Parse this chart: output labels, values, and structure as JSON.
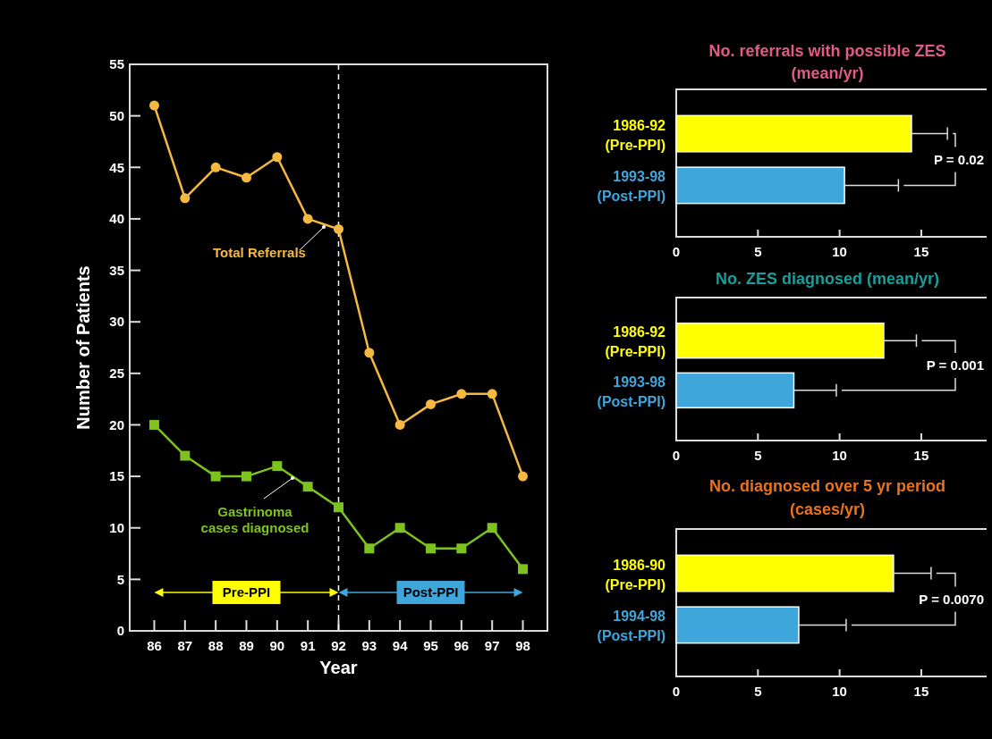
{
  "chart_data": [
    {
      "type": "line",
      "xlabel": "Year",
      "ylabel": "Number of Patients",
      "x": [
        86,
        87,
        88,
        89,
        90,
        91,
        92,
        93,
        94,
        95,
        96,
        97,
        98
      ],
      "xlim": [
        85.2,
        98.8
      ],
      "xticks": [
        86,
        87,
        88,
        89,
        90,
        91,
        92,
        93,
        94,
        95,
        96,
        97,
        98
      ],
      "ylim": [
        0,
        55
      ],
      "yticks": [
        0,
        5,
        10,
        15,
        20,
        25,
        30,
        35,
        40,
        45,
        50,
        55
      ],
      "grid": false,
      "series": [
        {
          "name": "Total Referrals",
          "color": "#f5b942",
          "marker": "circle",
          "values": [
            51,
            42,
            45,
            44,
            46,
            40,
            39,
            27,
            20,
            22,
            23,
            23,
            15
          ]
        },
        {
          "name": "Gastrinoma\ncases diagnosed",
          "color": "#7dc21e",
          "marker": "square",
          "values": [
            20,
            17,
            15,
            15,
            16,
            14,
            12,
            8,
            10,
            8,
            8,
            10,
            6
          ]
        }
      ],
      "ref_lines": [
        {
          "axis": "x",
          "value": 92,
          "color": "#ffffff",
          "line_style": "dashed"
        }
      ],
      "annotations": [
        "Pre-PPI",
        "Post-PPI"
      ]
    },
    {
      "type": "bar",
      "orientation": "horizontal",
      "title": "No. referrals with possible ZES\n(mean/yr)",
      "categories": [
        "1986-92\n(Pre-PPI)",
        "1993-98\n(Post-PPI)"
      ],
      "values": [
        14.4,
        10.3
      ],
      "colors": [
        "#ffff00",
        "#3fa6dc"
      ],
      "errors": [
        [
          14.4,
          16.6
        ],
        [
          10.3,
          13.6
        ]
      ],
      "xlim": [
        0,
        19
      ],
      "xticks": [
        0,
        5,
        10,
        15
      ],
      "annotations": [
        "P = 0.02"
      ]
    },
    {
      "type": "bar",
      "orientation": "horizontal",
      "title": "No. ZES diagnosed (mean/yr)",
      "categories": [
        "1986-92\n(Pre-PPI)",
        "1993-98\n(Post-PPI)"
      ],
      "values": [
        12.7,
        7.2
      ],
      "colors": [
        "#ffff00",
        "#3fa6dc"
      ],
      "errors": [
        [
          12.7,
          14.7
        ],
        [
          7.2,
          9.8
        ]
      ],
      "xlim": [
        0,
        19
      ],
      "xticks": [
        0,
        5,
        10,
        15
      ],
      "annotations": [
        "P = 0.001"
      ]
    },
    {
      "type": "bar",
      "orientation": "horizontal",
      "title": "No. diagnosed over 5 yr period\n(cases/yr)",
      "categories": [
        "1986-90\n(Pre-PPI)",
        "1994-98\n(Post-PPI)"
      ],
      "values": [
        13.3,
        7.5
      ],
      "colors": [
        "#ffff00",
        "#3fa6dc"
      ],
      "errors": [
        [
          13.3,
          15.6
        ],
        [
          7.5,
          10.4
        ]
      ],
      "xlim": [
        0,
        19
      ],
      "xticks": [
        0,
        5,
        10,
        15
      ],
      "annotations": [
        "P = 0.0070"
      ]
    }
  ]
}
